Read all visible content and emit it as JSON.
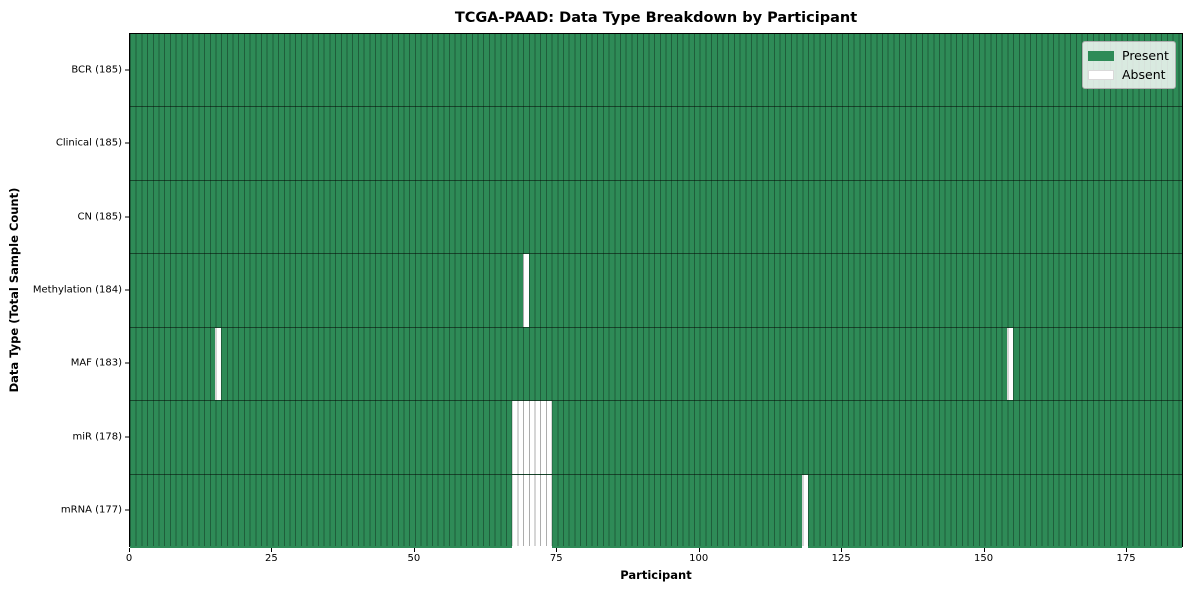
{
  "title": "TCGA-PAAD: Data Type Breakdown by Participant",
  "axes": {
    "xlabel": "Participant",
    "ylabel": "Data Type (Total Sample Count)"
  },
  "legend": [
    {
      "label": "Present",
      "color": "#2e8b57"
    },
    {
      "label": "Absent",
      "color": "#ffffff"
    }
  ],
  "colors": {
    "present": "#2e8b57",
    "absent": "#ffffff",
    "grid_line": "rgba(0,0,0,0.32)",
    "row_line": "rgba(0,0,0,0.5)",
    "plot_border": "#000000"
  },
  "chart_data": {
    "type": "heatmap",
    "title": "TCGA-PAAD: Data Type Breakdown by Participant",
    "xlabel": "Participant",
    "ylabel": "Data Type (Total Sample Count)",
    "legend_position": "upper right",
    "x_range": [
      0,
      185
    ],
    "n_participants": 185,
    "x_ticks": [
      0,
      25,
      50,
      75,
      100,
      125,
      150,
      175
    ],
    "rows": [
      {
        "label": "BCR (185)",
        "data_type": "BCR",
        "present_count": 185,
        "absent_participants": []
      },
      {
        "label": "Clinical (185)",
        "data_type": "Clinical",
        "present_count": 185,
        "absent_participants": []
      },
      {
        "label": "CN (185)",
        "data_type": "CN",
        "present_count": 185,
        "absent_participants": []
      },
      {
        "label": "Methylation (184)",
        "data_type": "Methylation",
        "present_count": 184,
        "absent_participants": [
          69
        ]
      },
      {
        "label": "MAF (183)",
        "data_type": "MAF",
        "present_count": 183,
        "absent_participants": [
          15,
          154
        ]
      },
      {
        "label": "miR (178)",
        "data_type": "miR",
        "present_count": 178,
        "absent_participants": [
          67,
          68,
          69,
          70,
          71,
          72,
          73
        ]
      },
      {
        "label": "mRNA (177)",
        "data_type": "mRNA",
        "present_count": 177,
        "absent_participants": [
          67,
          68,
          69,
          70,
          71,
          72,
          73,
          118
        ]
      }
    ]
  }
}
